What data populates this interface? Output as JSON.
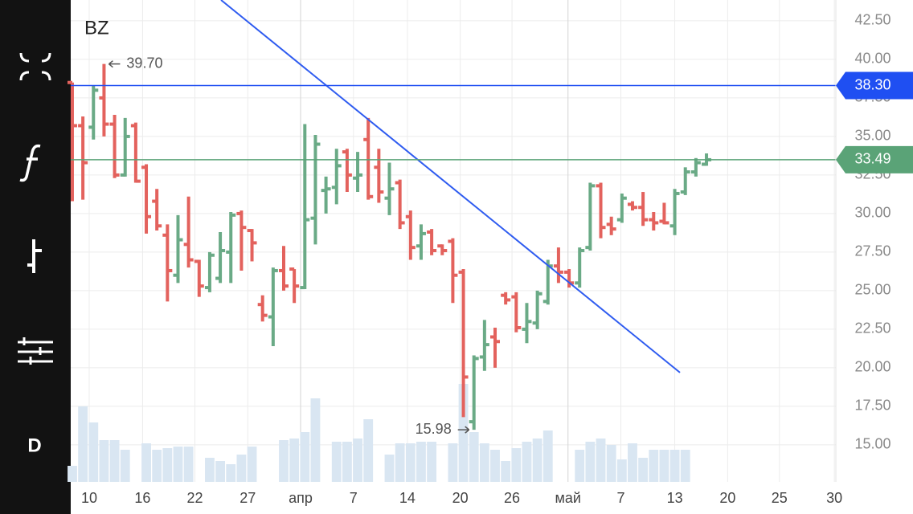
{
  "chart_data": {
    "type": "ohlc",
    "title": "BZ",
    "timeframe": "D",
    "ylim": [
      12.6,
      43.85
    ],
    "yticks": [
      {
        "value": 15,
        "label": "15.00"
      },
      {
        "value": 17.5,
        "label": "17.50"
      },
      {
        "value": 20,
        "label": "20.00"
      },
      {
        "value": 22.5,
        "label": "22.50"
      },
      {
        "value": 25,
        "label": "25.00"
      },
      {
        "value": 27.5,
        "label": "27.50"
      },
      {
        "value": 30,
        "label": "30.00"
      },
      {
        "value": 32.5,
        "label": "32.50"
      },
      {
        "value": 35,
        "label": "35.00"
      },
      {
        "value": 37.5,
        "label": "37.50"
      },
      {
        "value": 40,
        "label": "40.00"
      },
      {
        "value": 42.5,
        "label": "42.50"
      }
    ],
    "xlim": [
      -0.15,
      72.24
    ],
    "xticks": [
      {
        "value": 1.6,
        "label": "10"
      },
      {
        "value": 6.65,
        "label": "16"
      },
      {
        "value": 11.6,
        "label": "22"
      },
      {
        "value": 16.6,
        "label": "27"
      },
      {
        "value": 21.6,
        "label": "апр"
      },
      {
        "value": 26.6,
        "label": "7"
      },
      {
        "value": 31.7,
        "label": "14"
      },
      {
        "value": 36.7,
        "label": "20"
      },
      {
        "value": 41.6,
        "label": "26"
      },
      {
        "value": 46.9,
        "label": "май"
      },
      {
        "value": 51.9,
        "label": "7"
      },
      {
        "value": 57.0,
        "label": "13"
      },
      {
        "value": 62.0,
        "label": "20"
      },
      {
        "value": 66.9,
        "label": "25"
      },
      {
        "value": 72.1,
        "label": "30"
      }
    ],
    "month_ticks": [
      4,
      9
    ],
    "grid": true,
    "up_color": "#6aaa86",
    "down_color": "#e3625d",
    "volume_color": "#d9e6f2",
    "open": [
      38.5,
      35.7,
      35.6,
      37.5,
      35.8,
      32.5,
      35.7,
      33.0,
      30.8,
      28.6,
      26.0,
      28.0,
      26.9,
      25.2,
      25.8,
      27.5,
      30.0,
      28.9,
      24.1,
      23.3,
      26.3,
      26.4,
      25.2,
      29.7,
      31.5,
      31.7,
      34.0,
      32.3,
      34.8,
      33.0,
      31.0,
      32.0,
      29.8,
      27.9,
      28.8,
      27.9,
      28.2,
      26.2,
      16.5,
      20.7,
      22.0,
      24.7,
      24.6,
      22.5,
      22.9,
      24.3,
      26.6,
      26.2,
      25.5,
      27.8,
      31.8,
      29.3,
      29.6,
      30.6,
      30.4,
      29.6,
      29.5,
      29.2,
      31.4,
      32.7,
      33.2
    ],
    "high": [
      38.5,
      36.3,
      38.3,
      39.7,
      36.4,
      36.2,
      35.9,
      33.2,
      31.6,
      29.3,
      29.9,
      31.1,
      27.0,
      27.5,
      28.8,
      30.1,
      30.2,
      29.0,
      24.7,
      26.5,
      27.9,
      26.4,
      35.8,
      35.1,
      32.4,
      34.2,
      34.2,
      34.0,
      36.2,
      34.2,
      33.3,
      32.2,
      30.2,
      29.3,
      29.0,
      28.0,
      28.4,
      26.4,
      20.8,
      23.1,
      22.6,
      24.9,
      24.9,
      24.2,
      25.0,
      27.0,
      27.8,
      26.4,
      27.8,
      32.0,
      32.0,
      29.8,
      31.3,
      30.8,
      31.4,
      30.1,
      30.7,
      31.6,
      33.0,
      33.6,
      33.9
    ],
    "low": [
      30.8,
      30.9,
      34.8,
      35.0,
      32.3,
      32.4,
      32.0,
      28.7,
      28.9,
      24.3,
      25.5,
      26.5,
      24.6,
      24.9,
      25.5,
      25.5,
      26.3,
      26.9,
      23.0,
      21.4,
      25.0,
      24.2,
      25.1,
      28.0,
      30.0,
      30.6,
      31.4,
      31.4,
      30.9,
      30.7,
      29.9,
      29.0,
      27.0,
      27.0,
      27.3,
      27.3,
      24.2,
      16.8,
      15.98,
      19.8,
      20.0,
      24.1,
      22.3,
      21.6,
      22.5,
      24.1,
      25.5,
      25.2,
      25.2,
      27.6,
      28.4,
      28.6,
      29.4,
      30.2,
      29.2,
      28.9,
      29.3,
      28.6,
      31.2,
      32.4,
      33.1
    ],
    "close": [
      35.7,
      33.3,
      38.0,
      35.8,
      32.5,
      35.0,
      32.1,
      29.8,
      29.2,
      26.3,
      28.3,
      27.0,
      25.3,
      27.3,
      27.6,
      29.9,
      29.1,
      28.1,
      23.4,
      26.3,
      25.3,
      25.3,
      29.6,
      34.5,
      31.6,
      33.1,
      32.5,
      32.5,
      31.1,
      31.4,
      31.6,
      29.4,
      27.8,
      28.7,
      27.6,
      27.6,
      26.0,
      19.4,
      20.6,
      21.5,
      21.7,
      24.4,
      22.6,
      23.0,
      24.8,
      26.6,
      26.2,
      25.5,
      27.6,
      31.8,
      29.1,
      29.0,
      31.0,
      30.4,
      29.6,
      29.4,
      29.4,
      31.3,
      32.7,
      33.3,
      33.49
    ],
    "volume": [
      20,
      94,
      74,
      52,
      52,
      40,
      0,
      48,
      40,
      42,
      44,
      44,
      0,
      30,
      26,
      22,
      34,
      44,
      0,
      0,
      52,
      54,
      62,
      104,
      0,
      50,
      50,
      54,
      78,
      0,
      34,
      48,
      48,
      50,
      50,
      0,
      48,
      122,
      62,
      48,
      40,
      26,
      42,
      50,
      54,
      64,
      0,
      0,
      40,
      50,
      54,
      46,
      28,
      48,
      30,
      40,
      40,
      40,
      40,
      0,
      0
    ],
    "hlines": [
      {
        "value": 38.3,
        "label": "38.30",
        "color": "#1f4ff2"
      },
      {
        "value": 33.49,
        "label": "33.49",
        "color": "#5aa377"
      }
    ],
    "trendline": {
      "x": [
        14.07,
        57.49
      ],
      "y": [
        43.85,
        19.69
      ],
      "color": "#2f5cf0"
    },
    "annotations": [
      {
        "x": 3,
        "value": 39.7,
        "label": "39.70",
        "side": "right"
      },
      {
        "x": 38,
        "value": 15.98,
        "label": "15.98",
        "side": "left"
      }
    ]
  }
}
